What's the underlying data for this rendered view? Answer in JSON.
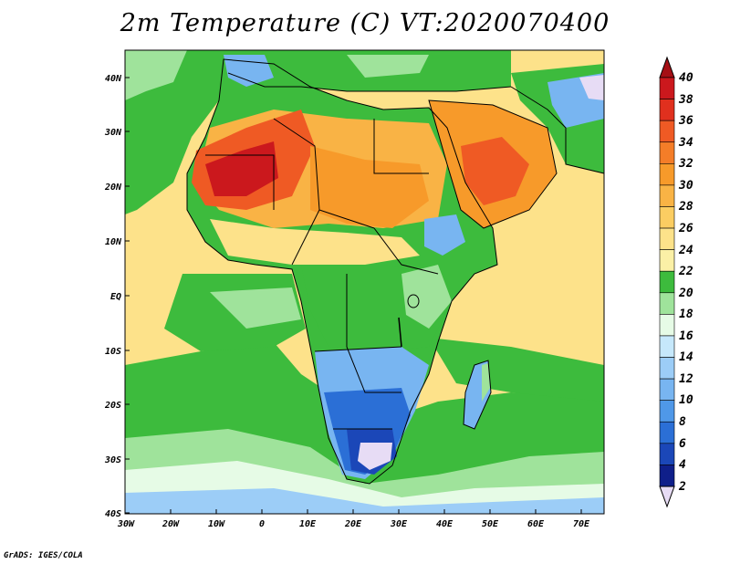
{
  "title": "2m Temperature (C) VT:2020070400",
  "credit": "GrADS: IGES/COLA",
  "lat_ticks": [
    "40N",
    "30N",
    "20N",
    "10N",
    "EQ",
    "10S",
    "20S",
    "30S",
    "40S"
  ],
  "lon_ticks": [
    "30W",
    "20W",
    "10W",
    "0",
    "10E",
    "20E",
    "30E",
    "40E",
    "50E",
    "60E",
    "70E"
  ],
  "colorbar": {
    "levels": [
      "40",
      "38",
      "36",
      "34",
      "32",
      "30",
      "28",
      "26",
      "24",
      "22",
      "20",
      "18",
      "16",
      "14",
      "12",
      "10",
      "8",
      "6",
      "4",
      "2"
    ],
    "colors": [
      "#a50f15",
      "#cb181d",
      "#e0301e",
      "#ef5a24",
      "#f47d28",
      "#f79a2a",
      "#f9b345",
      "#fbcd62",
      "#fde28a",
      "#fbf0a6",
      "#3dbb3d",
      "#9fe39b",
      "#e6fbe6",
      "#c6e8fb",
      "#9ccdf7",
      "#78b5f1",
      "#4f98e8",
      "#2b6fd6",
      "#1b47b8",
      "#0f1f8a",
      "#e7dcf5"
    ]
  },
  "colors": {
    "ocean_warm": "#fde28a",
    "ocean_cool": "#3dbb3d",
    "ocean_cold": "#9fe39b",
    "land_hot": "#e0301e",
    "land_warm": "#f79a2a",
    "land_mid": "#fbcd62",
    "land_green": "#3dbb3d",
    "land_cool": "#78b5f1",
    "land_cold": "#2b6fd6",
    "land_coldest": "#e7dcf5"
  }
}
